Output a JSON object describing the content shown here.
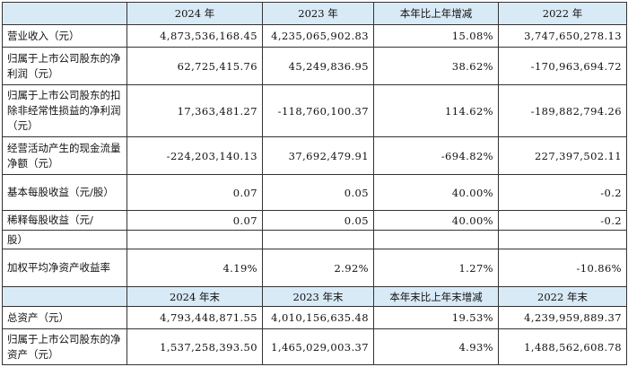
{
  "header1": [
    "",
    "2024 年",
    "2023 年",
    "本年比上年增减",
    "2022 年"
  ],
  "rows1": [
    {
      "label": "营业收入（元）",
      "v2024": "4,873,536,168.45",
      "v2023": "4,235,065,902.83",
      "change": "15.08%",
      "v2022": "3,747,650,278.13"
    },
    {
      "label": "归属于上市公司股东的净利润（元）",
      "v2024": "62,725,415.76",
      "v2023": "45,249,836.95",
      "change": "38.62%",
      "v2022": "-170,963,694.72"
    },
    {
      "label": "归属于上市公司股东的扣除非经常性损益的净利润（元）",
      "v2024": "17,363,481.27",
      "v2023": "-118,760,100.37",
      "change": "114.62%",
      "v2022": "-189,882,794.26"
    },
    {
      "label": "经营活动产生的现金流量净额（元）",
      "v2024": "-224,203,140.13",
      "v2023": "37,692,479.91",
      "change": "-694.82%",
      "v2022": "227,397,502.11"
    },
    {
      "label": "基本每股收益（元/股）",
      "v2024": "0.07",
      "v2023": "0.05",
      "change": "40.00%",
      "v2022": "-0.2"
    },
    {
      "label": "稀释每股收益（元/",
      "v2024": "0.07",
      "v2023": "0.05",
      "change": "40.00%",
      "v2022": "-0.2"
    }
  ],
  "carry_label": "股）",
  "row_roe": {
    "label": "加权平均净资产收益率",
    "v2024": "4.19%",
    "v2023": "2.92%",
    "change": "1.27%",
    "v2022": "-10.86%"
  },
  "header2": [
    "",
    "2024 年末",
    "2023 年末",
    "本年末比上年末增减",
    "2022 年末"
  ],
  "rows2": [
    {
      "label": "总资产（元）",
      "v2024": "4,793,448,871.55",
      "v2023": "4,010,156,635.48",
      "change": "19.53%",
      "v2022": "4,239,959,889.37"
    },
    {
      "label": "归属于上市公司股东的净资产（元）",
      "v2024": "1,537,258,393.50",
      "v2023": "1,465,029,003.37",
      "change": "4.93%",
      "v2022": "1,488,562,608.78"
    }
  ]
}
